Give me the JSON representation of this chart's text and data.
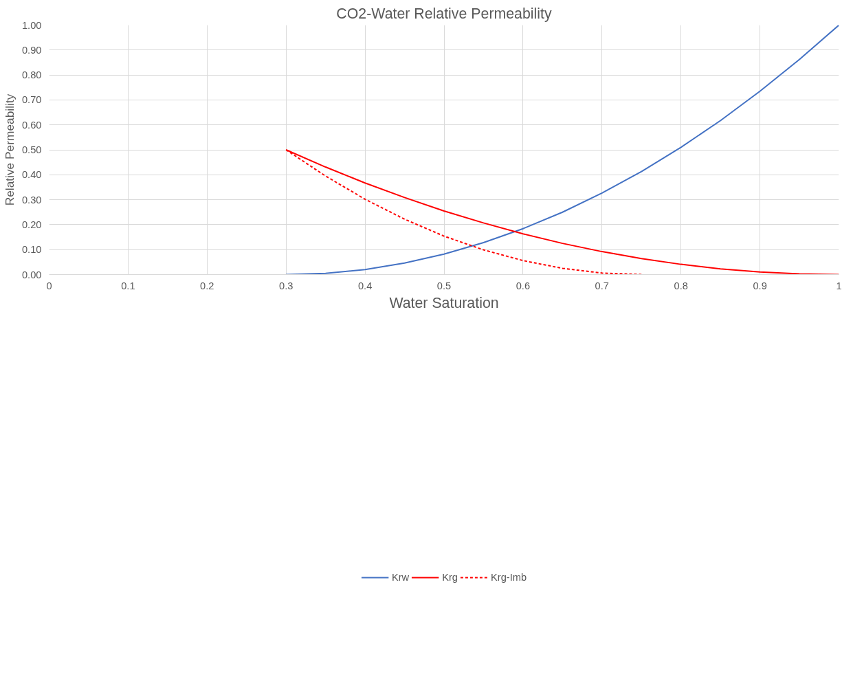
{
  "chart_data": {
    "type": "line",
    "title": "CO2-Water Relative Permeability",
    "xlabel": "Water Saturation",
    "ylabel": "Relative Permeability",
    "xlim": [
      0,
      1
    ],
    "ylim": [
      0,
      1
    ],
    "xticks": [
      0,
      0.1,
      0.2,
      0.3,
      0.4,
      0.5,
      0.6,
      0.7,
      0.8,
      0.9,
      1
    ],
    "yticks": [
      {
        "value": 0,
        "label": "0.00"
      },
      {
        "value": 0.1,
        "label": "0.10"
      },
      {
        "value": 0.2,
        "label": "0.20"
      },
      {
        "value": 0.3,
        "label": "0.30"
      },
      {
        "value": 0.4,
        "label": "0.40"
      },
      {
        "value": 0.5,
        "label": "0.50"
      },
      {
        "value": 0.6,
        "label": "0.60"
      },
      {
        "value": 0.7,
        "label": "0.70"
      },
      {
        "value": 0.8,
        "label": "0.80"
      },
      {
        "value": 0.9,
        "label": "0.90"
      },
      {
        "value": 1,
        "label": "1.00"
      }
    ],
    "grid": true,
    "legend": "bottom",
    "marker": "none",
    "series": [
      {
        "name": "Krw",
        "color": "#4472c4",
        "line_style": "solid",
        "x": [
          0.3,
          0.35,
          0.4,
          0.45,
          0.5,
          0.55,
          0.6,
          0.65,
          0.7,
          0.75,
          0.8,
          0.85,
          0.9,
          0.95,
          1
        ],
        "values": [
          0,
          0.005,
          0.02,
          0.046,
          0.082,
          0.128,
          0.184,
          0.25,
          0.327,
          0.413,
          0.51,
          0.617,
          0.735,
          0.862,
          1
        ]
      },
      {
        "name": "Krg",
        "color": "#ff0000",
        "line_style": "solid",
        "x": [
          0.3,
          0.35,
          0.4,
          0.45,
          0.5,
          0.55,
          0.6,
          0.65,
          0.7,
          0.75,
          0.8,
          0.85,
          0.9,
          0.95,
          1
        ],
        "values": [
          0.5,
          0.431,
          0.367,
          0.309,
          0.255,
          0.207,
          0.163,
          0.125,
          0.092,
          0.064,
          0.041,
          0.023,
          0.01,
          0.003,
          0
        ]
      },
      {
        "name": "Krg-Imb",
        "color": "#ff0000",
        "line_style": "dashed",
        "x": [
          0.3,
          0.35,
          0.4,
          0.45,
          0.5,
          0.55,
          0.6,
          0.65,
          0.7,
          0.75
        ],
        "values": [
          0.5,
          0.395,
          0.302,
          0.222,
          0.154,
          0.099,
          0.056,
          0.025,
          0.006,
          0
        ]
      }
    ]
  }
}
